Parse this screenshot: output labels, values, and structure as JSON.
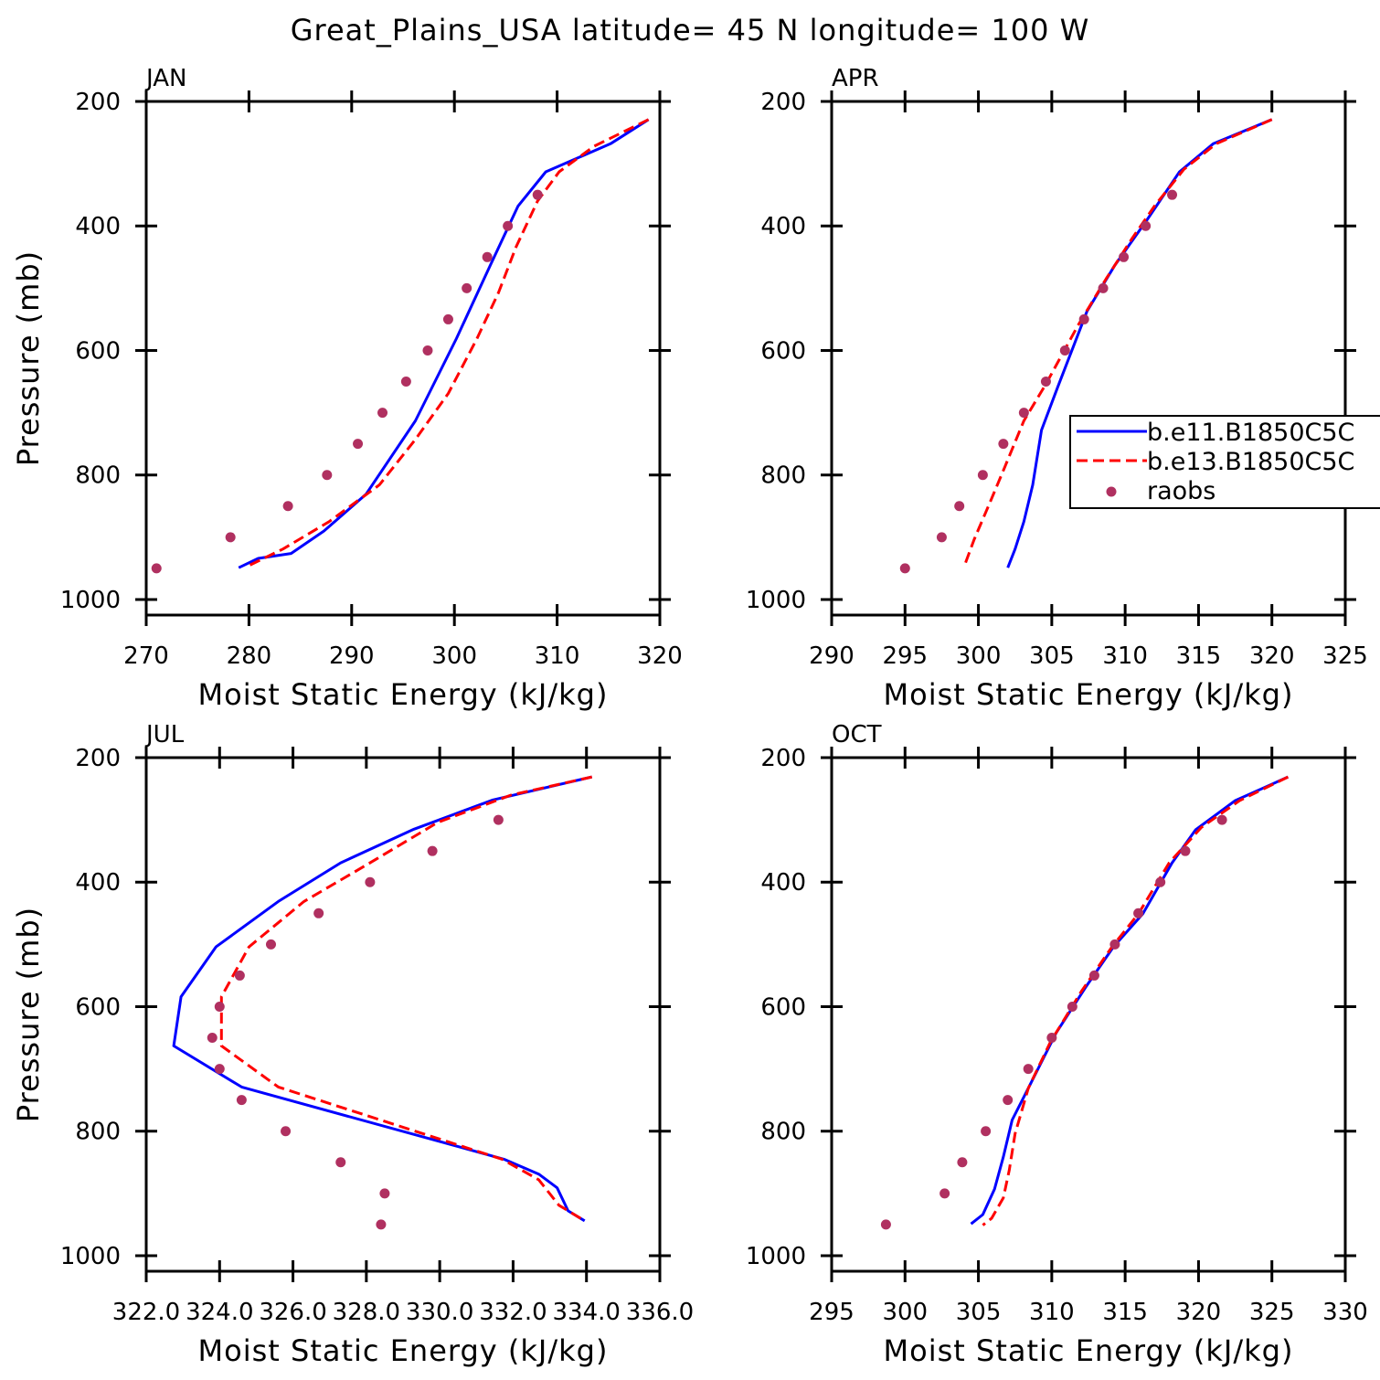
{
  "title": "Great_Plains_USA  latitude= 45 N longitude= 100 W",
  "chart_data": [
    {
      "type": "line",
      "title": "JAN",
      "xlabel": "Moist Static Energy (kJ/kg)",
      "ylabel": "Pressure (mb)",
      "xlim": [
        270,
        320
      ],
      "xticks": [
        270,
        280,
        290,
        300,
        310,
        320
      ],
      "ylim": [
        1025,
        200
      ],
      "yticks": [
        200,
        400,
        600,
        800,
        1000
      ],
      "series": [
        {
          "color": "#0000ff",
          "style": "solid",
          "x": [
            318.9,
            315.2,
            308.9,
            306.2,
            303.5,
            300.2,
            296.2,
            291.4,
            287.3,
            284.1,
            280.9,
            279.0
          ],
          "y": [
            229,
            268,
            313,
            368,
            463,
            581,
            713,
            831,
            890,
            926,
            934,
            949
          ]
        },
        {
          "color": "#ff0000",
          "style": "dashed",
          "x": [
            318.9,
            313.6,
            310.2,
            308.1,
            306.0,
            304.3,
            302.2,
            299.4,
            296.2,
            292.7,
            287.8,
            283.3,
            279.8
          ],
          "y": [
            229,
            272,
            313,
            360,
            434,
            507,
            581,
            669,
            743,
            816,
            875,
            919,
            947
          ]
        },
        {
          "color": "#b03060",
          "style": "markers",
          "x": [
            308.1,
            305.2,
            303.2,
            301.2,
            299.4,
            297.4,
            295.3,
            293.0,
            290.6,
            287.6,
            283.8,
            278.2,
            271.0
          ],
          "y": [
            350,
            400,
            450,
            500,
            550,
            600,
            650,
            700,
            750,
            800,
            850,
            900,
            950
          ]
        }
      ]
    },
    {
      "type": "line",
      "title": "APR",
      "xlabel": "Moist Static Energy (kJ/kg)",
      "xlim": [
        290,
        325
      ],
      "xticks": [
        290,
        295,
        300,
        305,
        310,
        315,
        320,
        325
      ],
      "ylim": [
        1025,
        200
      ],
      "yticks": [
        200,
        400,
        600,
        800,
        1000
      ],
      "legend": "right",
      "series": [
        {
          "name": "b.e11.B1850C5C",
          "color": "#0000ff",
          "style": "solid",
          "x": [
            320.0,
            316.0,
            313.7,
            311.5,
            309.3,
            307.4,
            305.4,
            304.3,
            303.7,
            303.1,
            302.5,
            302.0
          ],
          "y": [
            229,
            268,
            313,
            390,
            463,
            537,
            659,
            728,
            816,
            875,
            919,
            949
          ]
        },
        {
          "name": "b.e13.B1850C5C",
          "color": "#ff0000",
          "style": "dashed",
          "x": [
            320.0,
            316.2,
            314.0,
            312.0,
            310.5,
            308.7,
            306.8,
            304.6,
            303.1,
            301.8,
            300.9,
            299.7,
            299.0
          ],
          "y": [
            229,
            268,
            309,
            368,
            419,
            485,
            559,
            654,
            713,
            787,
            838,
            904,
            949
          ]
        },
        {
          "name": "raobs",
          "color": "#b03060",
          "style": "markers",
          "x": [
            313.2,
            311.4,
            309.9,
            308.5,
            307.2,
            305.9,
            304.6,
            303.1,
            301.7,
            300.3,
            298.7,
            297.5,
            295.0
          ],
          "y": [
            350,
            400,
            450,
            500,
            550,
            600,
            650,
            700,
            750,
            800,
            850,
            900,
            950
          ]
        }
      ]
    },
    {
      "type": "line",
      "title": "JUL",
      "xlabel": "Moist Static Energy (kJ/kg)",
      "ylabel": "Pressure (mb)",
      "xlim": [
        322,
        336
      ],
      "xticks": [
        {
          "value": 322,
          "label": "322.0"
        },
        {
          "value": 324,
          "label": "324.0"
        },
        {
          "value": 326,
          "label": "326.0"
        },
        {
          "value": 328,
          "label": "328.0"
        },
        {
          "value": 330,
          "label": "330.0"
        },
        {
          "value": 332,
          "label": "332.0"
        },
        {
          "value": 334,
          "label": "334.0"
        },
        {
          "value": 336,
          "label": "336.0"
        }
      ],
      "ylim": [
        1025,
        200
      ],
      "yticks": [
        200,
        400,
        600,
        800,
        1000
      ],
      "series": [
        {
          "color": "#0000ff",
          "style": "solid",
          "x": [
            334.15,
            331.45,
            329.3,
            327.3,
            325.6,
            323.9,
            322.95,
            322.75,
            324.6,
            331.75,
            332.7,
            333.2,
            333.5,
            333.95
          ],
          "y": [
            231,
            268,
            315,
            369,
            431,
            504,
            584,
            663,
            729,
            845,
            869,
            891,
            928,
            944
          ]
        },
        {
          "color": "#ff0000",
          "style": "dashed",
          "x": [
            334.15,
            331.95,
            329.95,
            328.1,
            326.3,
            324.8,
            324.05,
            324.05,
            325.6,
            331.7,
            332.7,
            333.25,
            333.95
          ],
          "y": [
            231,
            260,
            304,
            369,
            431,
            504,
            584,
            663,
            729,
            845,
            878,
            919,
            944
          ]
        },
        {
          "color": "#b03060",
          "style": "markers",
          "x": [
            331.6,
            329.8,
            328.1,
            326.7,
            325.4,
            324.55,
            324.0,
            323.8,
            324.0,
            324.6,
            325.8,
            327.3,
            328.5,
            328.4
          ],
          "y": [
            300,
            350,
            400,
            450,
            500,
            550,
            600,
            650,
            700,
            750,
            800,
            850,
            900,
            950
          ]
        }
      ]
    },
    {
      "type": "line",
      "title": "OCT",
      "xlabel": "Moist Static Energy (kJ/kg)",
      "xlim": [
        295,
        330
      ],
      "xticks": [
        295,
        300,
        305,
        310,
        315,
        320,
        325,
        330
      ],
      "ylim": [
        1025,
        200
      ],
      "yticks": [
        200,
        400,
        600,
        800,
        1000
      ],
      "series": [
        {
          "color": "#0000ff",
          "style": "solid",
          "x": [
            326.1,
            322.5,
            319.8,
            318.2,
            316.2,
            314.2,
            312.3,
            310.3,
            308.4,
            307.3,
            306.7,
            306.1,
            305.3,
            304.5
          ],
          "y": [
            231,
            269,
            316,
            369,
            451,
            504,
            569,
            642,
            731,
            782,
            841,
            893,
            934,
            949
          ]
        },
        {
          "color": "#ff0000",
          "style": "dashed",
          "x": [
            326.1,
            322.8,
            320.2,
            318.0,
            315.9,
            314.1,
            312.0,
            309.9,
            308.4,
            307.5,
            307.1,
            306.7,
            305.9,
            305.3
          ],
          "y": [
            231,
            269,
            312,
            369,
            451,
            504,
            576,
            657,
            731,
            804,
            863,
            907,
            940,
            951
          ]
        },
        {
          "color": "#b03060",
          "style": "markers",
          "x": [
            321.6,
            319.1,
            317.4,
            315.9,
            314.3,
            312.9,
            311.4,
            310.0,
            308.4,
            307.0,
            305.5,
            303.9,
            302.7,
            298.7
          ],
          "y": [
            300,
            350,
            400,
            450,
            500,
            550,
            600,
            650,
            700,
            750,
            800,
            850,
            900,
            950
          ]
        }
      ]
    }
  ]
}
